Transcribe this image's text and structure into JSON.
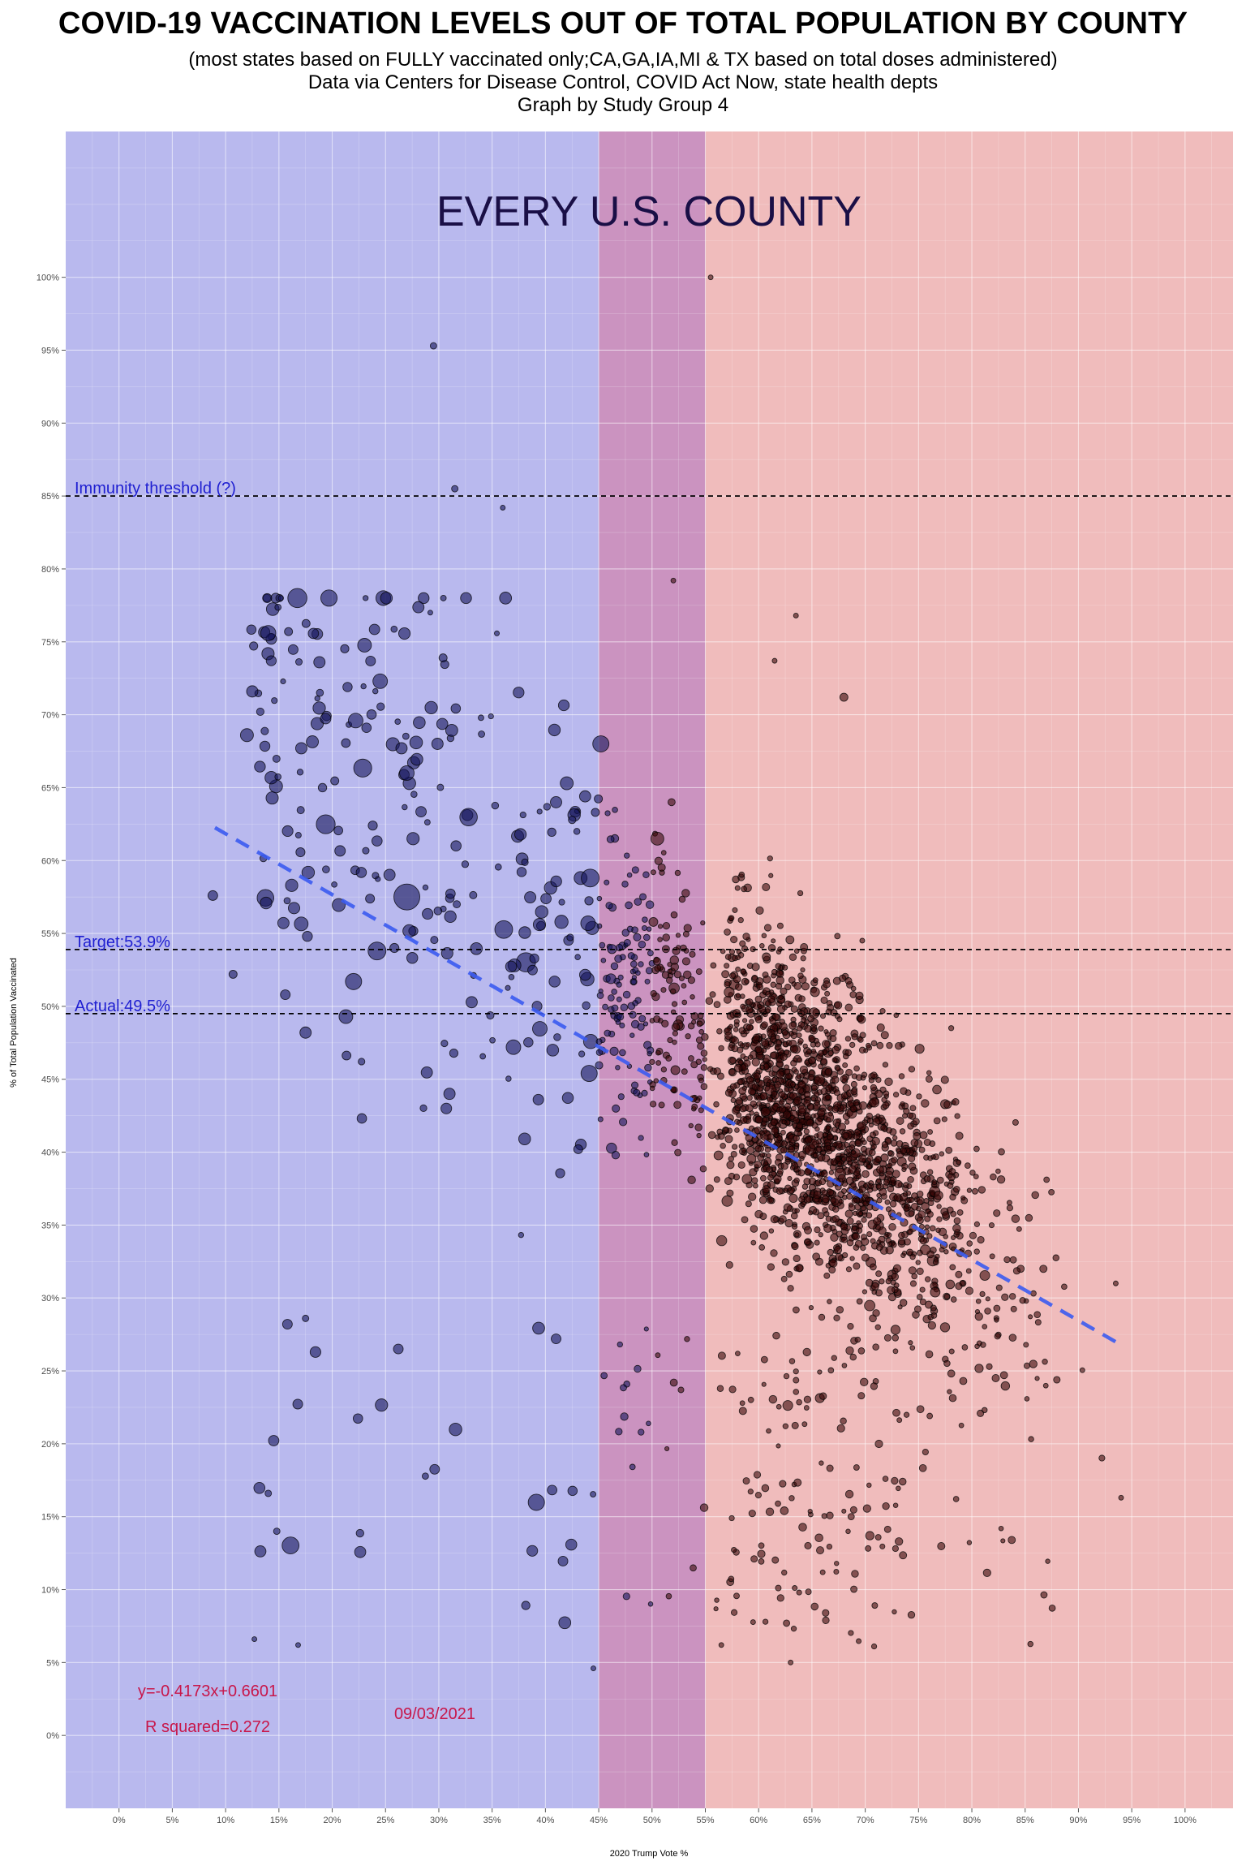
{
  "header": {
    "title": "COVID-19 VACCINATION LEVELS OUT OF TOTAL POPULATION BY COUNTY",
    "subtitle_1": "(most states based on FULLY vaccinated only;CA,GA,IA,MI & TX based on total doses administered)",
    "subtitle_2": "Data via Centers for Disease Control, COVID Act Now, state health depts",
    "subtitle_3": "Graph by Study Group 4"
  },
  "chart_data": {
    "type": "scatter",
    "panel_title": "EVERY U.S. COUNTY",
    "xlabel": "2020 Trump Vote %",
    "ylabel": "% of Total Population Vaccinated",
    "xlim": [
      -0.05,
      1.045
    ],
    "ylim": [
      -0.05,
      1.1
    ],
    "x_ticks": [
      0,
      0.05,
      0.1,
      0.15,
      0.2,
      0.25,
      0.3,
      0.35,
      0.4,
      0.45,
      0.5,
      0.55,
      0.6,
      0.65,
      0.7,
      0.75,
      0.8,
      0.85,
      0.9,
      0.95,
      1.0
    ],
    "x_tick_labels": [
      "0%",
      "5%",
      "10%",
      "15%",
      "20%",
      "25%",
      "30%",
      "35%",
      "40%",
      "45%",
      "50%",
      "55%",
      "60%",
      "65%",
      "70%",
      "75%",
      "80%",
      "85%",
      "90%",
      "95%",
      "100%"
    ],
    "y_ticks": [
      0,
      0.05,
      0.1,
      0.15,
      0.2,
      0.25,
      0.3,
      0.35,
      0.4,
      0.45,
      0.5,
      0.55,
      0.6,
      0.65,
      0.7,
      0.75,
      0.8,
      0.85,
      0.9,
      0.95,
      1.0
    ],
    "y_tick_labels": [
      "0%",
      "5%",
      "10%",
      "15%",
      "20%",
      "25%",
      "30%",
      "35%",
      "40%",
      "45%",
      "50%",
      "55%",
      "60%",
      "65%",
      "70%",
      "75%",
      "80%",
      "85%",
      "90%",
      "95%",
      "100%"
    ],
    "grid": true,
    "background_bands": [
      {
        "from": -0.05,
        "to": 0.45,
        "color": "#b9b9ee"
      },
      {
        "from": 0.45,
        "to": 0.55,
        "color": "#cb93c0"
      },
      {
        "from": 0.55,
        "to": 1.045,
        "color": "#f0bcbc"
      }
    ],
    "reference_lines": [
      {
        "y": 0.85,
        "label": "Immunity threshold (?)"
      },
      {
        "y": 0.539,
        "label": "Target:53.9%"
      },
      {
        "y": 0.495,
        "label": "Actual:49.5%"
      }
    ],
    "trend_line": {
      "slope": -0.4173,
      "intercept": 0.6601,
      "x_from": 0.09,
      "x_to": 0.94,
      "color": "#3b5bf0"
    },
    "equation_label": "y=-0.4173x+0.6601",
    "r_squared_label": "R squared=0.272",
    "date_label": "09/03/2021",
    "point_colors": {
      "democratic": "#14145a",
      "republican": "#3a0808"
    },
    "highlighted_points": [
      {
        "x": 0.555,
        "y": 1.0,
        "size": 3
      },
      {
        "x": 0.295,
        "y": 0.953,
        "size": 4
      },
      {
        "x": 0.315,
        "y": 0.855,
        "size": 4
      },
      {
        "x": 0.36,
        "y": 0.842,
        "size": 3
      },
      {
        "x": 0.52,
        "y": 0.792,
        "size": 3
      },
      {
        "x": 0.292,
        "y": 0.77,
        "size": 3
      },
      {
        "x": 0.635,
        "y": 0.768,
        "size": 3
      },
      {
        "x": 0.159,
        "y": 0.757,
        "size": 5
      },
      {
        "x": 0.188,
        "y": 0.736,
        "size": 7
      },
      {
        "x": 0.304,
        "y": 0.739,
        "size": 5
      },
      {
        "x": 0.615,
        "y": 0.737,
        "size": 3
      },
      {
        "x": 0.245,
        "y": 0.723,
        "size": 9
      },
      {
        "x": 0.125,
        "y": 0.716,
        "size": 7
      },
      {
        "x": 0.68,
        "y": 0.712,
        "size": 5
      },
      {
        "x": 0.12,
        "y": 0.686,
        "size": 8
      },
      {
        "x": 0.222,
        "y": 0.696,
        "size": 9
      },
      {
        "x": 0.171,
        "y": 0.677,
        "size": 7
      },
      {
        "x": 0.265,
        "y": 0.677,
        "size": 7
      },
      {
        "x": 0.27,
        "y": 0.66,
        "size": 9
      },
      {
        "x": 0.452,
        "y": 0.68,
        "size": 10
      },
      {
        "x": 0.42,
        "y": 0.653,
        "size": 8
      },
      {
        "x": 0.41,
        "y": 0.64,
        "size": 7
      },
      {
        "x": 0.505,
        "y": 0.615,
        "size": 8
      },
      {
        "x": 0.27,
        "y": 0.575,
        "size": 16
      },
      {
        "x": 0.242,
        "y": 0.538,
        "size": 11
      },
      {
        "x": 0.22,
        "y": 0.517,
        "size": 10
      },
      {
        "x": 0.433,
        "y": 0.588,
        "size": 8
      },
      {
        "x": 0.44,
        "y": 0.557,
        "size": 9
      },
      {
        "x": 0.442,
        "y": 0.588,
        "size": 11
      },
      {
        "x": 0.37,
        "y": 0.472,
        "size": 9
      },
      {
        "x": 0.441,
        "y": 0.454,
        "size": 10
      },
      {
        "x": 0.088,
        "y": 0.576,
        "size": 6
      },
      {
        "x": 0.175,
        "y": 0.482,
        "size": 7
      },
      {
        "x": 0.107,
        "y": 0.522,
        "size": 5
      },
      {
        "x": 0.156,
        "y": 0.508,
        "size": 6
      },
      {
        "x": 0.31,
        "y": 0.44,
        "size": 7
      },
      {
        "x": 0.262,
        "y": 0.265,
        "size": 6
      },
      {
        "x": 0.158,
        "y": 0.282,
        "size": 6
      },
      {
        "x": 0.175,
        "y": 0.286,
        "size": 4
      },
      {
        "x": 0.14,
        "y": 0.166,
        "size": 4
      },
      {
        "x": 0.148,
        "y": 0.14,
        "size": 4
      },
      {
        "x": 0.127,
        "y": 0.066,
        "size": 3
      },
      {
        "x": 0.168,
        "y": 0.062,
        "size": 3
      },
      {
        "x": 0.41,
        "y": 0.272,
        "size": 6
      },
      {
        "x": 0.445,
        "y": 0.046,
        "size": 3
      },
      {
        "x": 0.565,
        "y": 0.062,
        "size": 3
      },
      {
        "x": 0.63,
        "y": 0.05,
        "size": 3
      },
      {
        "x": 0.935,
        "y": 0.31,
        "size": 3
      },
      {
        "x": 0.94,
        "y": 0.163,
        "size": 3
      }
    ]
  }
}
